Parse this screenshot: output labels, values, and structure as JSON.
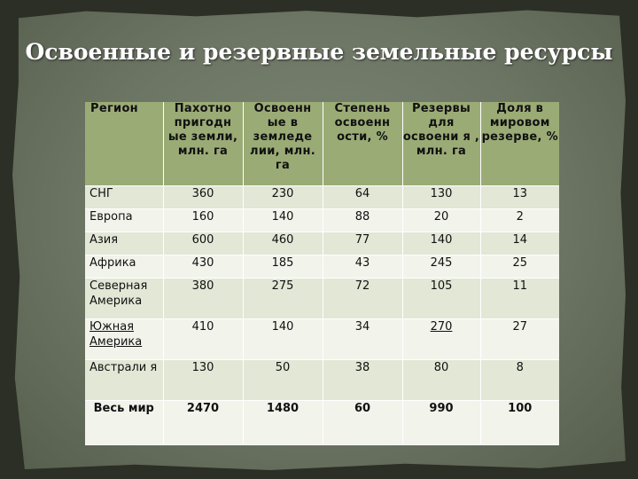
{
  "slide": {
    "title": "Освоенные и резервные земельные ресурсы"
  },
  "table": {
    "headers": [
      "Регион",
      "Пахотно пригодн ые земли, млн. га",
      "Освоенн ые в земледе лии, млн. га",
      "Степень освоенн ости, %",
      "Резервы для освоени я , млн. га",
      "Доля в мировом резерве, %"
    ],
    "rows": [
      {
        "region": "СНГ",
        "arable": "360",
        "developed": "230",
        "degree": "64",
        "reserves": "130",
        "share": "13"
      },
      {
        "region": "Европа",
        "arable": "160",
        "developed": "140",
        "degree": "88",
        "reserves": "20",
        "share": "2"
      },
      {
        "region": "Азия",
        "arable": "600",
        "developed": "460",
        "degree": "77",
        "reserves": "140",
        "share": "14"
      },
      {
        "region": "Африка",
        "arable": "430",
        "developed": "185",
        "degree": "43",
        "reserves": "245",
        "share": "25"
      },
      {
        "region": "Северная Америка",
        "arable": "380",
        "developed": "275",
        "degree": "72",
        "reserves": "105",
        "share": "11"
      },
      {
        "region": "Южная Америка",
        "arable": "410",
        "developed": "140",
        "degree": "34",
        "reserves": "270",
        "share": "27"
      },
      {
        "region": "Австрали я",
        "arable": "130",
        "developed": "50",
        "degree": "38",
        "reserves": "80",
        "share": "8"
      },
      {
        "region": "Весь мир",
        "arable": "2470",
        "developed": "1480",
        "degree": "60",
        "reserves": "990",
        "share": "100"
      }
    ]
  }
}
